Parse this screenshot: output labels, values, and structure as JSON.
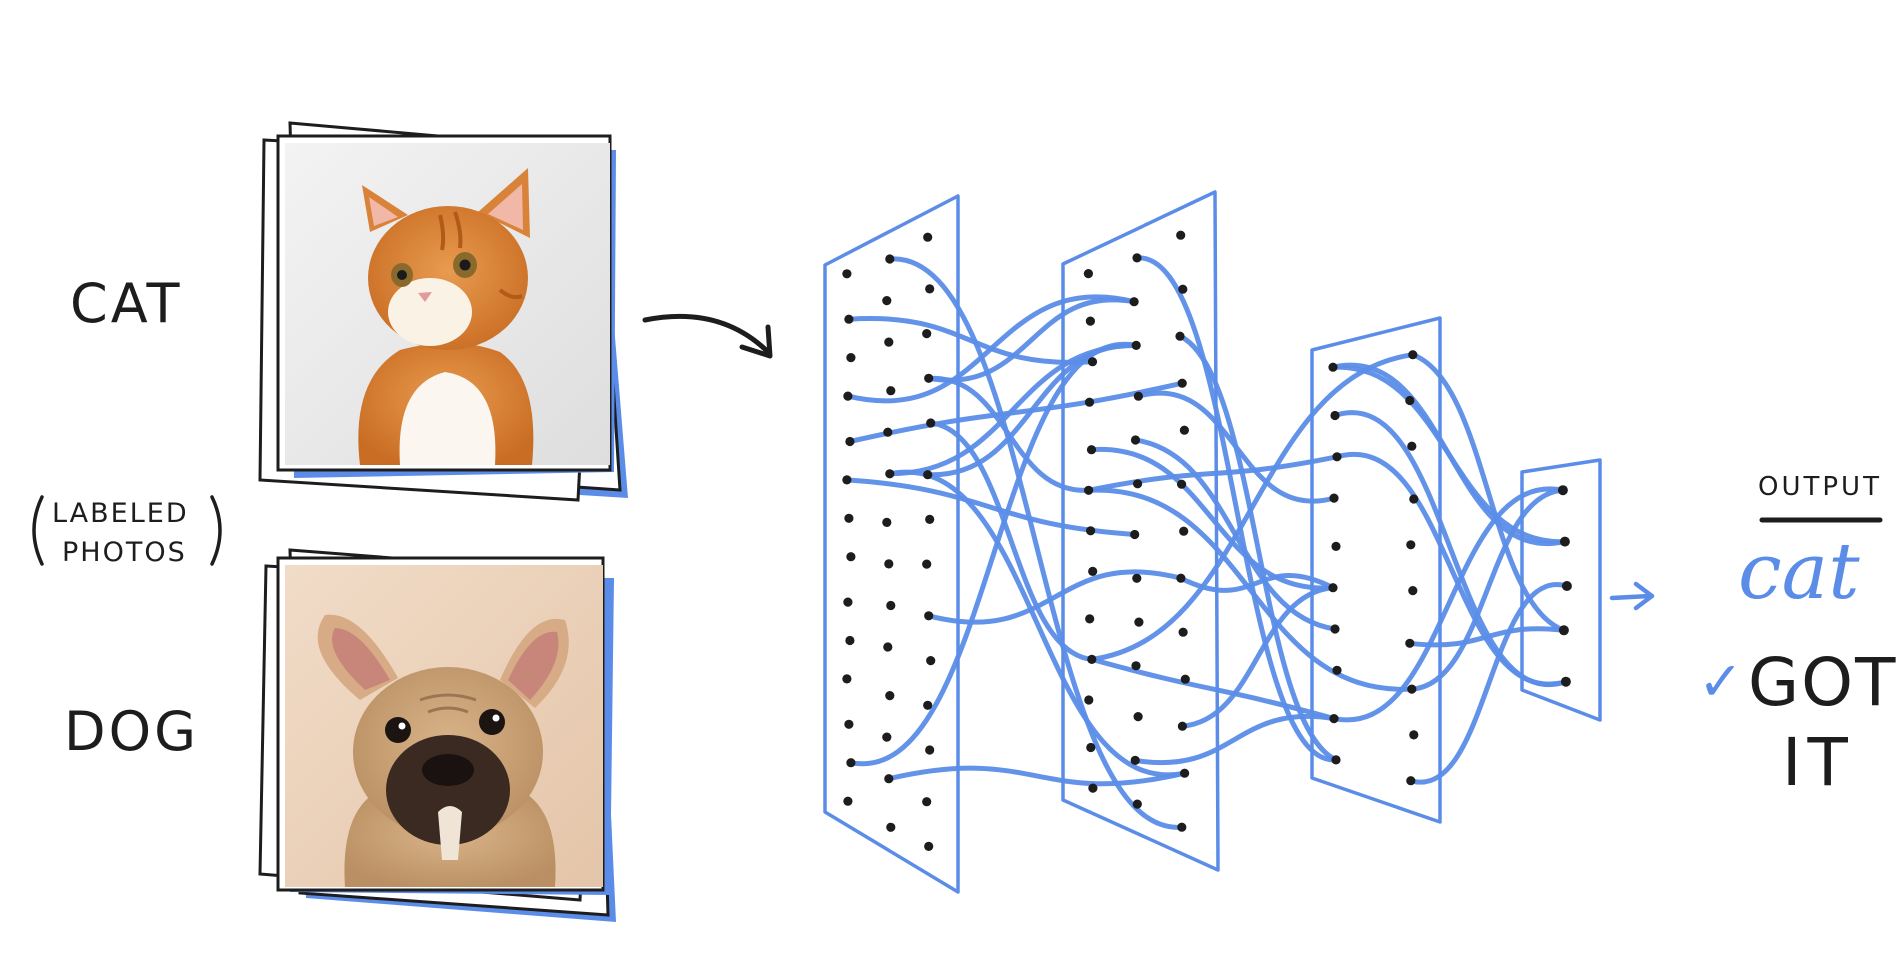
{
  "labels": {
    "cat": "CAT",
    "labeled": "LABELED",
    "photos": "PHOTOS",
    "dog": "DOG",
    "output_header": "OUTPUT",
    "output_value": "cat",
    "check_mark": "✓",
    "got": "GOT",
    "it": "IT"
  },
  "photos": [
    {
      "name": "cat-photo",
      "subject": "orange kitten on white background"
    },
    {
      "name": "dog-photo",
      "subject": "french bulldog on beige background"
    }
  ],
  "network": {
    "layers": [
      {
        "name": "input-layer",
        "dots_per_row": 3,
        "rows": 14
      },
      {
        "name": "hidden-layer-1",
        "dots_per_row": 3,
        "rows": 13
      },
      {
        "name": "hidden-layer-2",
        "dots_per_row": 2,
        "rows": 10
      },
      {
        "name": "output-layer",
        "dots_per_row": 1,
        "rows": 5
      }
    ]
  },
  "colors": {
    "accent_blue": "#5b8de8",
    "ink": "#1d1d1d",
    "cat_background": "#e9e9e9",
    "dog_background": "#edd6c1"
  }
}
